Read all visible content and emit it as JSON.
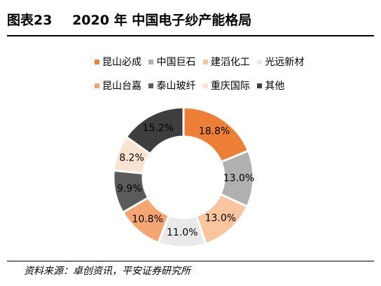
{
  "header": {
    "figure_number": "图表23",
    "title": "2020 年 中国电子纱产能格局"
  },
  "source": "资料来源：卓创资讯，平安证券研究所",
  "chart_data": {
    "type": "pie",
    "donut": true,
    "legend_position": "top",
    "start_angle_deg": 0,
    "series": [
      {
        "name": "昆山必成",
        "value": 18.8,
        "label": "18.8%",
        "color": "#EE7F36"
      },
      {
        "name": "中国巨石",
        "value": 13.0,
        "label": "13.0%",
        "color": "#B0B0B0"
      },
      {
        "name": "建滔化工",
        "value": 13.0,
        "label": "13.0%",
        "color": "#F8C59E"
      },
      {
        "name": "光远新材",
        "value": 11.0,
        "label": "11.0%",
        "color": "#E9E9E9"
      },
      {
        "name": "昆山台嘉",
        "value": 10.8,
        "label": "10.8%",
        "color": "#F4A571"
      },
      {
        "name": "泰山玻纤",
        "value": 9.9,
        "label": "9.9%",
        "color": "#5B5B5B"
      },
      {
        "name": "重庆国际",
        "value": 8.2,
        "label": "8.2%",
        "color": "#FBE3D2"
      },
      {
        "name": "其他",
        "value": 15.2,
        "label": "15.2%",
        "color": "#3E3E3E"
      }
    ]
  }
}
